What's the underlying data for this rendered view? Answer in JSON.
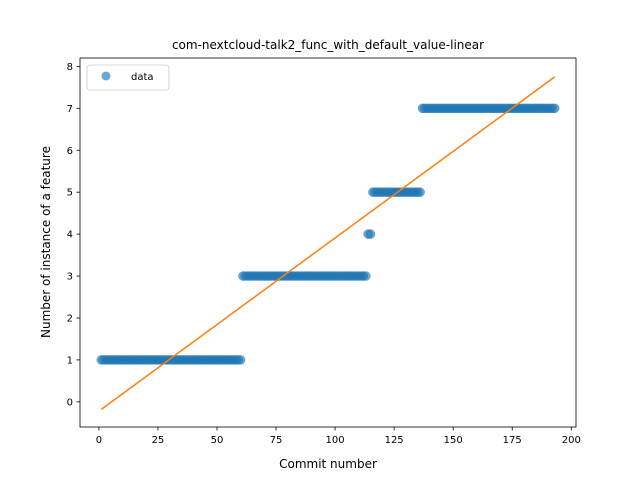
{
  "chart_data": {
    "type": "scatter",
    "title": "com-nextcloud-talk2_func_with_default_value-linear",
    "xlabel": "Commit number",
    "ylabel": "Number of instance of a feature",
    "xlim": [
      -8,
      202
    ],
    "ylim": [
      -0.6,
      8.2
    ],
    "xticks": [
      0,
      25,
      50,
      75,
      100,
      125,
      150,
      175,
      200
    ],
    "yticks": [
      0,
      1,
      2,
      3,
      4,
      5,
      6,
      7,
      8
    ],
    "grid": false,
    "legend": {
      "placement": "top-left",
      "entries": [
        "data"
      ]
    },
    "series": [
      {
        "name": "data",
        "kind": "scatter",
        "color": "#1f77b4",
        "runs": [
          {
            "x_start": 1,
            "x_end": 60,
            "y": 1
          },
          {
            "x_start": 61,
            "x_end": 113,
            "y": 3
          },
          {
            "x_start": 114,
            "x_end": 115,
            "y": 4
          },
          {
            "x_start": 116,
            "x_end": 136,
            "y": 5
          },
          {
            "x_start": 137,
            "x_end": 193,
            "y": 7
          }
        ]
      },
      {
        "kind": "line",
        "color": "#ff7f0e",
        "points": [
          [
            1,
            -0.18
          ],
          [
            193,
            7.75
          ]
        ]
      }
    ]
  }
}
